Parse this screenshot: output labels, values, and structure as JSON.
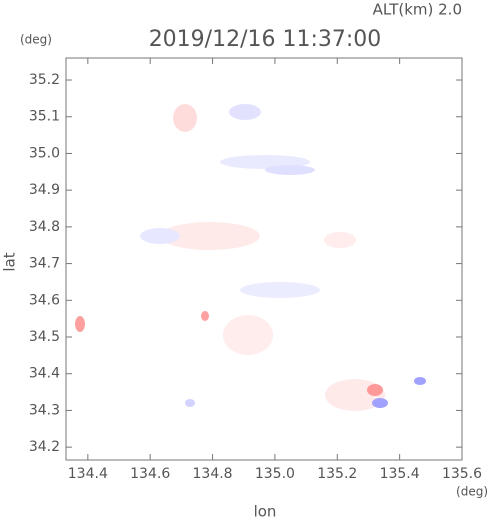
{
  "chart_data": {
    "type": "map",
    "title": "2019/12/16 11:37:00",
    "subtitle": "ALT(km) 2.0",
    "x_label": "lon",
    "y_label": "lat",
    "x_unit": "(deg)",
    "y_unit": "(deg)",
    "xlim": [
      134.33,
      135.6
    ],
    "ylim": [
      34.165,
      35.26
    ],
    "xticks": [
      134.4,
      134.6,
      134.8,
      {
        "value": 135,
        "label": "135.0"
      },
      135.2,
      135.4,
      135.6
    ],
    "yticks": [
      34.2,
      34.3,
      34.4,
      34.5,
      34.6,
      34.7,
      34.8,
      34.9,
      {
        "value": 35,
        "label": "35.0"
      },
      35.1,
      35.2
    ]
  }
}
